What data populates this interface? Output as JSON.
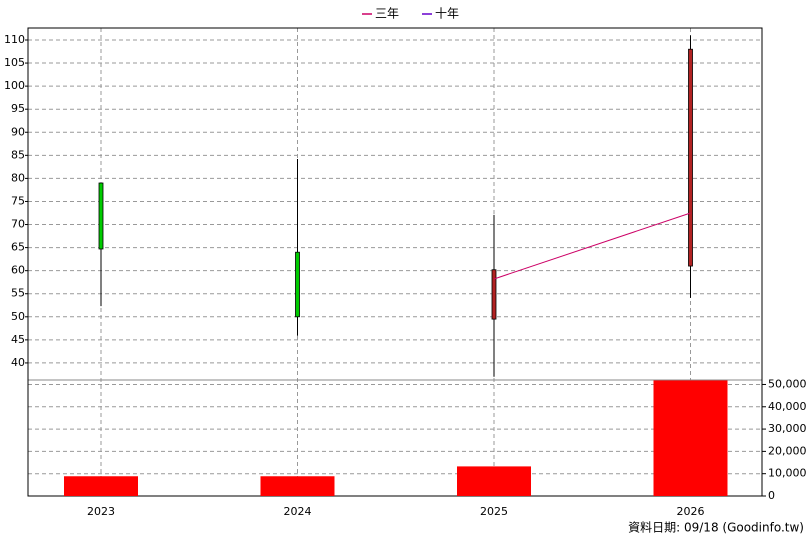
{
  "chart_data": {
    "type": "candlestick",
    "categories": [
      "2023",
      "2024",
      "2025",
      "2026"
    ],
    "open": [
      79,
      64,
      49.5,
      61
    ],
    "high": [
      79,
      84.2,
      72.1,
      111
    ],
    "low": [
      52.3,
      45.9,
      37,
      54.1
    ],
    "close": [
      64.7,
      50,
      60.2,
      108
    ],
    "up_color": "#b22222",
    "down_color": "#00cc00",
    "ylim": [
      36.3,
      112.6
    ],
    "yticks": [
      40,
      45,
      50,
      55,
      60,
      65,
      70,
      75,
      80,
      85,
      90,
      95,
      100,
      105,
      110
    ],
    "grid": true,
    "series": [
      {
        "name": "三年",
        "color": "#cc0066",
        "values": [
          null,
          null,
          58.2,
          72.5
        ]
      },
      {
        "name": "十年",
        "color": "#6600cc",
        "values": [
          null,
          null,
          null,
          null
        ]
      }
    ],
    "volume": {
      "color": "#ff0000",
      "values": [
        8850,
        8850,
        13270,
        51800
      ],
      "y2lim": [
        0,
        52000
      ],
      "y2ticks": [
        0,
        {
          "value": 10000,
          "label": "10,000"
        },
        {
          "value": 20000,
          "label": "20,000"
        },
        {
          "value": 30000,
          "label": "30,000"
        },
        {
          "value": 40000,
          "label": "40,000"
        },
        {
          "value": 50000,
          "label": "50,000"
        }
      ]
    },
    "source": "資料日期: 09/18  (Goodinfo.tw)"
  }
}
